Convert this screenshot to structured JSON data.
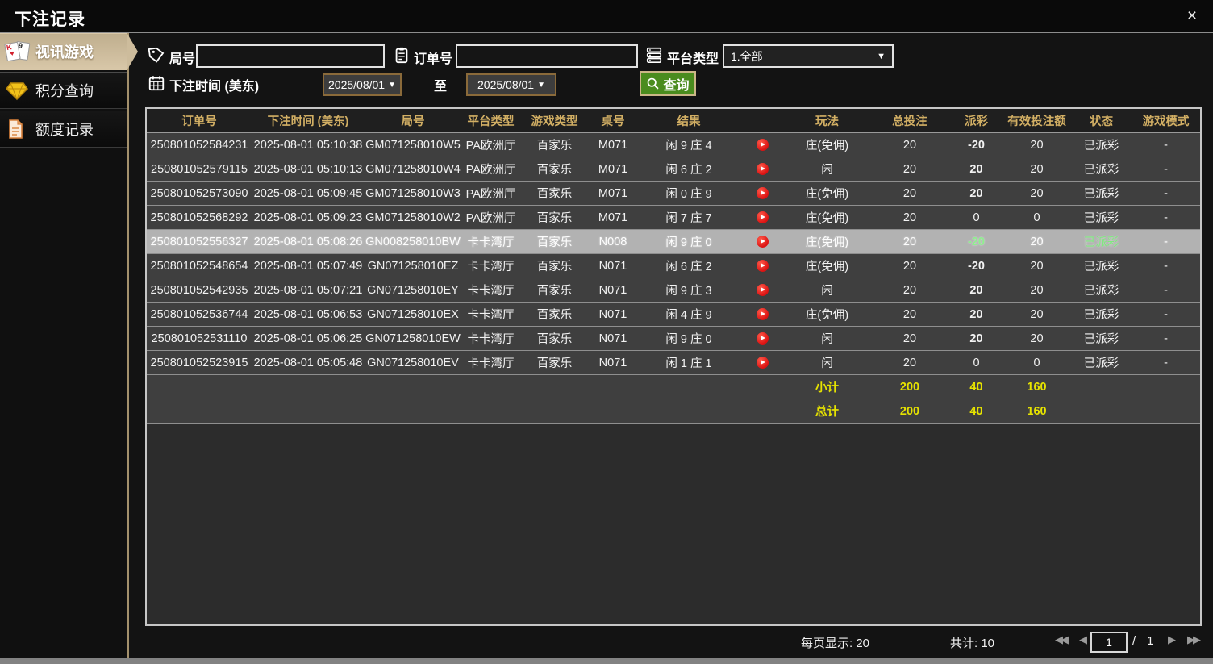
{
  "window": {
    "title": "下注记录",
    "close_glyph": "×"
  },
  "sidebar": {
    "items": [
      {
        "label": "视讯游戏",
        "icon": "playing-cards-icon",
        "active": true
      },
      {
        "label": "积分查询",
        "icon": "diamond-icon",
        "active": false
      },
      {
        "label": "额度记录",
        "icon": "document-icon",
        "active": false
      }
    ]
  },
  "filters": {
    "round_label": "局号",
    "round_value": "",
    "order_label": "订单号",
    "order_value": "",
    "platform_label": "平台类型",
    "platform_value": "1.全部",
    "time_label": "下注时间 (美东)",
    "date_from": "2025/08/01",
    "to_label": "至",
    "date_to": "2025/08/01",
    "search_label": "查询"
  },
  "icons": {
    "dropdown_arrow": "▼",
    "prev": "◀",
    "next": "▶",
    "first": "◀◀",
    "last": "▶▶"
  },
  "table": {
    "headers": [
      "订单号",
      "下注时间 (美东)",
      "局号",
      "平台类型",
      "游戏类型",
      "桌号",
      "结果",
      "",
      "玩法",
      "总投注",
      "派彩",
      "有效投注额",
      "状态",
      "游戏模式"
    ],
    "rows": [
      {
        "order": "250801052584231",
        "time": "2025-08-01 05:10:38",
        "round": "GM071258010W5",
        "platform": "PA欧洲厅",
        "game": "百家乐",
        "table_no": "M071",
        "result": "闲 9 庄 4",
        "play_type": "庄(免佣)",
        "total_bet": "20",
        "payout": "-20",
        "payout_color": "green",
        "valid_bet": "20",
        "status": "已派彩",
        "mode": "-",
        "selected": false
      },
      {
        "order": "250801052579115",
        "time": "2025-08-01 05:10:13",
        "round": "GM071258010W4",
        "platform": "PA欧洲厅",
        "game": "百家乐",
        "table_no": "M071",
        "result": "闲 6 庄 2",
        "play_type": "闲",
        "total_bet": "20",
        "payout": "20",
        "payout_color": "red",
        "valid_bet": "20",
        "status": "已派彩",
        "mode": "-",
        "selected": false
      },
      {
        "order": "250801052573090",
        "time": "2025-08-01 05:09:45",
        "round": "GM071258010W3",
        "platform": "PA欧洲厅",
        "game": "百家乐",
        "table_no": "M071",
        "result": "闲 0 庄 9",
        "play_type": "庄(免佣)",
        "total_bet": "20",
        "payout": "20",
        "payout_color": "red",
        "valid_bet": "20",
        "status": "已派彩",
        "mode": "-",
        "selected": false
      },
      {
        "order": "250801052568292",
        "time": "2025-08-01 05:09:23",
        "round": "GM071258010W2",
        "platform": "PA欧洲厅",
        "game": "百家乐",
        "table_no": "M071",
        "result": "闲 7 庄 7",
        "play_type": "庄(免佣)",
        "total_bet": "20",
        "payout": "0",
        "payout_color": "neutral",
        "valid_bet": "0",
        "status": "已派彩",
        "mode": "-",
        "selected": false
      },
      {
        "order": "250801052556327",
        "time": "2025-08-01 05:08:26",
        "round": "GN008258010BW",
        "platform": "卡卡湾厅",
        "game": "百家乐",
        "table_no": "N008",
        "result": "闲 9 庄 0",
        "play_type": "庄(免佣)",
        "total_bet": "20",
        "payout": "-20",
        "payout_color": "green",
        "valid_bet": "20",
        "status": "已派彩",
        "mode": "-",
        "selected": true
      },
      {
        "order": "250801052548654",
        "time": "2025-08-01 05:07:49",
        "round": "GN071258010EZ",
        "platform": "卡卡湾厅",
        "game": "百家乐",
        "table_no": "N071",
        "result": "闲 6 庄 2",
        "play_type": "庄(免佣)",
        "total_bet": "20",
        "payout": "-20",
        "payout_color": "green",
        "valid_bet": "20",
        "status": "已派彩",
        "mode": "-",
        "selected": false
      },
      {
        "order": "250801052542935",
        "time": "2025-08-01 05:07:21",
        "round": "GN071258010EY",
        "platform": "卡卡湾厅",
        "game": "百家乐",
        "table_no": "N071",
        "result": "闲 9 庄 3",
        "play_type": "闲",
        "total_bet": "20",
        "payout": "20",
        "payout_color": "red",
        "valid_bet": "20",
        "status": "已派彩",
        "mode": "-",
        "selected": false
      },
      {
        "order": "250801052536744",
        "time": "2025-08-01 05:06:53",
        "round": "GN071258010EX",
        "platform": "卡卡湾厅",
        "game": "百家乐",
        "table_no": "N071",
        "result": "闲 4 庄 9",
        "play_type": "庄(免佣)",
        "total_bet": "20",
        "payout": "20",
        "payout_color": "red",
        "valid_bet": "20",
        "status": "已派彩",
        "mode": "-",
        "selected": false
      },
      {
        "order": "250801052531110",
        "time": "2025-08-01 05:06:25",
        "round": "GN071258010EW",
        "platform": "卡卡湾厅",
        "game": "百家乐",
        "table_no": "N071",
        "result": "闲 9 庄 0",
        "play_type": "闲",
        "total_bet": "20",
        "payout": "20",
        "payout_color": "red",
        "valid_bet": "20",
        "status": "已派彩",
        "mode": "-",
        "selected": false
      },
      {
        "order": "250801052523915",
        "time": "2025-08-01 05:05:48",
        "round": "GN071258010EV",
        "platform": "卡卡湾厅",
        "game": "百家乐",
        "table_no": "N071",
        "result": "闲 1 庄 1",
        "play_type": "闲",
        "total_bet": "20",
        "payout": "0",
        "payout_color": "neutral",
        "valid_bet": "0",
        "status": "已派彩",
        "mode": "-",
        "selected": false
      }
    ],
    "subtotal": {
      "label": "小计",
      "total_bet": "200",
      "payout": "40",
      "valid_bet": "160"
    },
    "grand_total": {
      "label": "总计",
      "total_bet": "200",
      "payout": "40",
      "valid_bet": "160"
    }
  },
  "footer": {
    "per_page_label": "每页显示:",
    "per_page_value": "20",
    "total_label": "共计:",
    "total_value": "10",
    "current_page": "1",
    "page_separator": "/",
    "total_pages": "1"
  },
  "colors": {
    "accent_gold": "#d2af64",
    "active_tab_tan": "#cfbd9e",
    "button_green": "#4a8c1e",
    "payout_win_red": "#a61233",
    "payout_loss_green": "#3fd23f",
    "status_green": "#3fc93f",
    "subtotal_yellow": "#e6e300",
    "selected_row_gray": "#b2b2b2"
  }
}
